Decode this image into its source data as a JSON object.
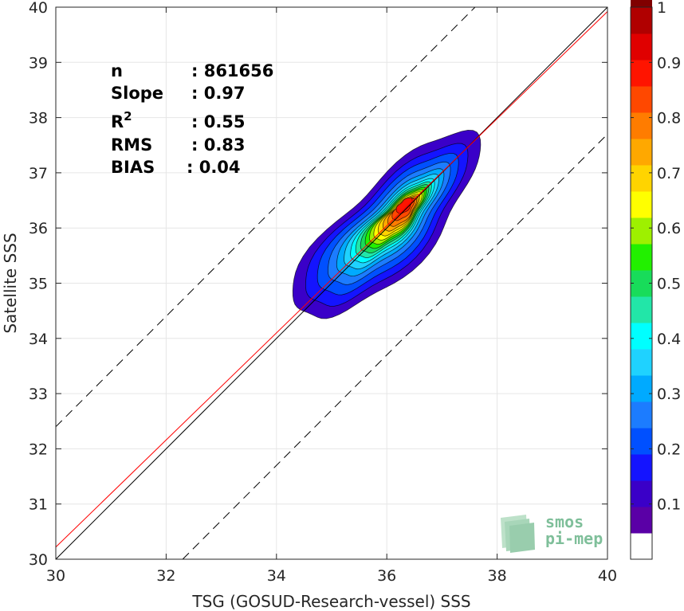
{
  "chart_data": {
    "type": "heatmap",
    "subtype": "filled-density-contour",
    "xlabel": "TSG (GOSUD-Research-vessel) SSS",
    "ylabel": "Satellite SSS",
    "xlim": [
      30,
      40
    ],
    "ylim": [
      30,
      40
    ],
    "xticks": [
      "30",
      "32",
      "34",
      "36",
      "38",
      "40"
    ],
    "yticks": [
      "30",
      "31",
      "32",
      "33",
      "34",
      "35",
      "36",
      "37",
      "38",
      "39",
      "40"
    ],
    "grid": true,
    "stats": [
      {
        "label": "n",
        "value": ": 861656"
      },
      {
        "label": "Slope",
        "value": ": 0.97"
      },
      {
        "label": "R2",
        "value": ": 0.55"
      },
      {
        "label": "RMS",
        "value": ": 0.83"
      },
      {
        "label": "BIAS",
        "value": ": 0.04"
      }
    ],
    "lines": [
      {
        "role": "identity",
        "color": "#000000",
        "style": "solid",
        "slope": 1,
        "intercept": 0
      },
      {
        "role": "regression",
        "color": "#ff0000",
        "style": "solid",
        "slope": 0.97,
        "intercept": 1.12
      },
      {
        "role": "upper-bound",
        "color": "#000000",
        "style": "dashed",
        "slope": 1,
        "intercept": 2.4
      },
      {
        "role": "lower-bound",
        "color": "#000000",
        "style": "dashed",
        "slope": 1,
        "intercept": -2.3
      }
    ],
    "contour_levels": [
      {
        "level": 0.05,
        "center": [
          36.0,
          36.0
        ],
        "a": 2.25,
        "b": 0.78
      },
      {
        "level": 0.1,
        "center": [
          36.0,
          36.0
        ],
        "a": 1.95,
        "b": 0.66
      },
      {
        "level": 0.15,
        "center": [
          36.02,
          36.02
        ],
        "a": 1.7,
        "b": 0.56
      },
      {
        "level": 0.2,
        "center": [
          36.04,
          36.04
        ],
        "a": 1.48,
        "b": 0.47
      },
      {
        "level": 0.25,
        "center": [
          36.06,
          36.06
        ],
        "a": 1.3,
        "b": 0.4
      },
      {
        "level": 0.3,
        "center": [
          36.08,
          36.08
        ],
        "a": 1.15,
        "b": 0.35
      },
      {
        "level": 0.35,
        "center": [
          36.1,
          36.1
        ],
        "a": 1.02,
        "b": 0.31
      },
      {
        "level": 0.4,
        "center": [
          36.12,
          36.12
        ],
        "a": 0.92,
        "b": 0.28
      },
      {
        "level": 0.45,
        "center": [
          36.14,
          36.14
        ],
        "a": 0.83,
        "b": 0.25
      },
      {
        "level": 0.5,
        "center": [
          36.16,
          36.16
        ],
        "a": 0.74,
        "b": 0.23
      },
      {
        "level": 0.55,
        "center": [
          36.18,
          36.18
        ],
        "a": 0.66,
        "b": 0.21
      },
      {
        "level": 0.6,
        "center": [
          36.2,
          36.2
        ],
        "a": 0.58,
        "b": 0.19
      },
      {
        "level": 0.65,
        "center": [
          36.22,
          36.22
        ],
        "a": 0.5,
        "b": 0.17
      },
      {
        "level": 0.7,
        "center": [
          36.25,
          36.25
        ],
        "a": 0.42,
        "b": 0.15
      },
      {
        "level": 0.75,
        "center": [
          36.28,
          36.28
        ],
        "a": 0.34,
        "b": 0.13
      },
      {
        "level": 0.8,
        "center": [
          36.3,
          36.33
        ],
        "a": 0.26,
        "b": 0.11
      },
      {
        "level": 0.85,
        "center": [
          36.32,
          36.4
        ],
        "a": 0.18,
        "b": 0.09
      }
    ],
    "colorbar": {
      "colors": [
        "#ffffff",
        "#5a00a6",
        "#3a00c8",
        "#1414ff",
        "#0050ff",
        "#1c7cff",
        "#00aaff",
        "#1fd2ff",
        "#00ffff",
        "#22e6a8",
        "#18dc5a",
        "#22f000",
        "#9ef000",
        "#ffff00",
        "#ffd400",
        "#ffa800",
        "#ff7c00",
        "#ff4800",
        "#ff1400",
        "#e00000",
        "#b00000",
        "#800000"
      ],
      "ticks": [
        "0.1",
        "0.2",
        "0.3",
        "0.4",
        "0.5",
        "0.6",
        "0.7",
        "0.8",
        "0.9",
        "1"
      ],
      "range": [
        0,
        1
      ]
    }
  },
  "logo": {
    "line1": "smos",
    "line2": "pi-mep"
  }
}
